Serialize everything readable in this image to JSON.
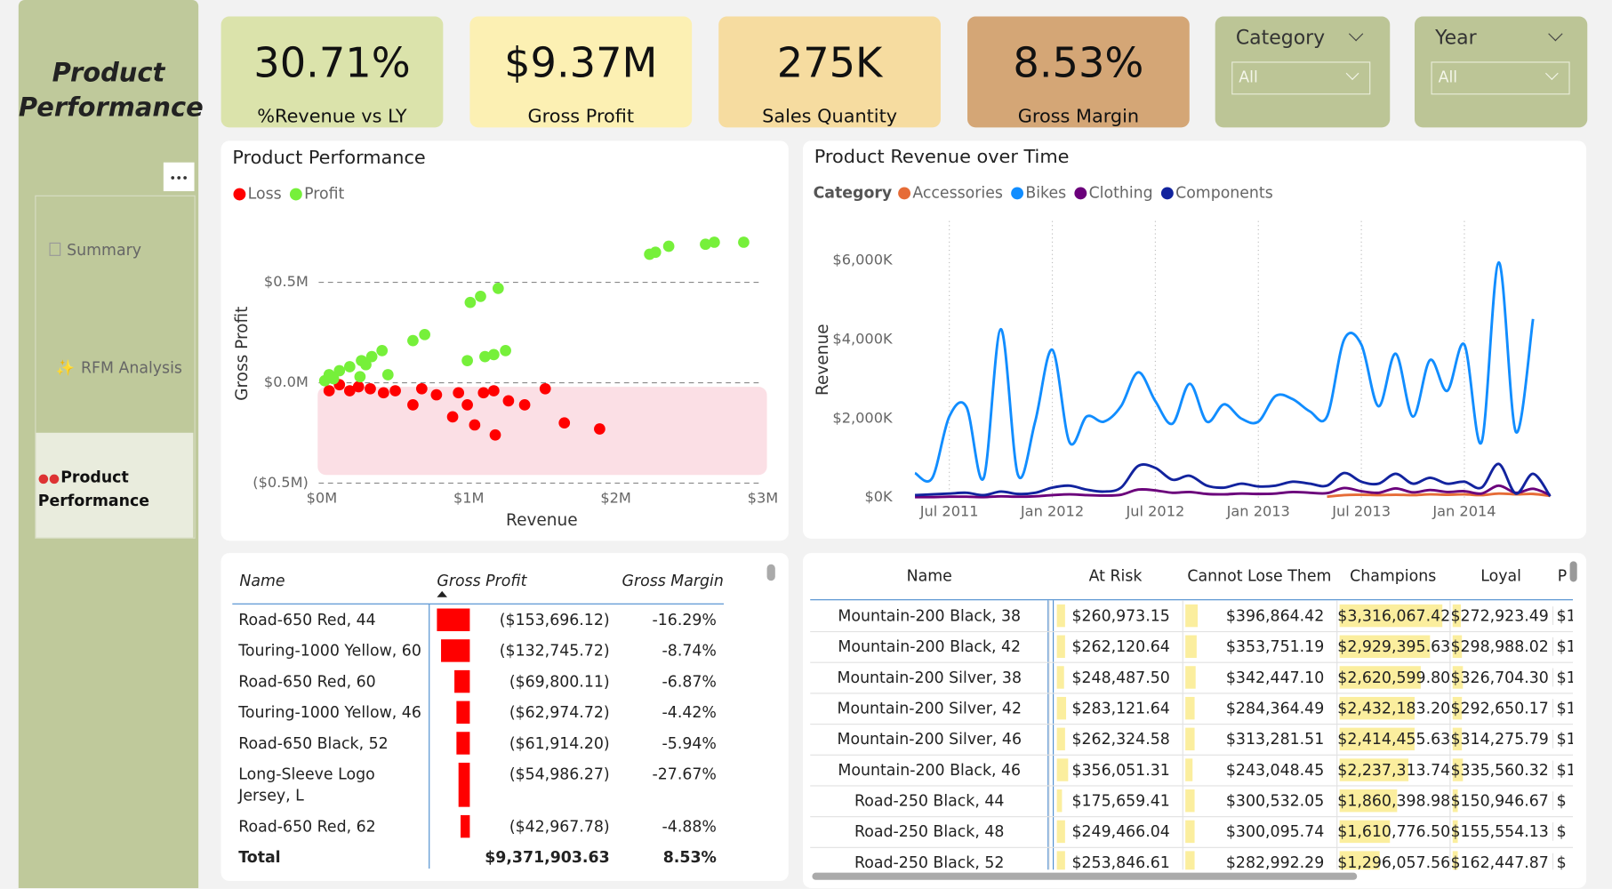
{
  "sidebar": {
    "title": "Product Performance",
    "nav": [
      "Summary",
      "RFM Analysis",
      "Product Performance"
    ]
  },
  "kpis": [
    {
      "value": "30.71%",
      "label": "%Revenue vs LY",
      "color": "#dbe3ab"
    },
    {
      "value": "$9.37M",
      "label": "Gross Profit",
      "color": "#fcf0b3"
    },
    {
      "value": "275K",
      "label": "Sales Quantity",
      "color": "#f6dca0"
    },
    {
      "value": "8.53%",
      "label": "Gross Margin",
      "color": "#d4a676"
    }
  ],
  "slicers": [
    {
      "title": "Category",
      "value": "All"
    },
    {
      "title": "Year",
      "value": "All"
    }
  ],
  "chart_data": [
    {
      "type": "scatter",
      "title": "Product Performance",
      "x_label": "Revenue",
      "y_label": "Gross Profit",
      "xlim": [
        0,
        3
      ],
      "xticks": [
        {
          "value": 0,
          "label": "$0M"
        },
        {
          "value": 1,
          "label": "$1M"
        },
        {
          "value": 2,
          "label": "$2M"
        },
        {
          "value": 3,
          "label": "$3M"
        }
      ],
      "ylim": [
        -0.5,
        0.78
      ],
      "yticks": [
        {
          "value": -0.5,
          "label": "($0.5M)"
        },
        {
          "value": 0,
          "label": "$0.0M"
        },
        {
          "value": 0.5,
          "label": "$0.5M"
        }
      ],
      "grid": true,
      "series": [
        {
          "name": "Loss",
          "color": "#ff0000",
          "x": [
            1.89,
            1.65,
            1.18,
            1.04,
            0.89,
            0.62,
            1.38,
            1.27,
            1.52,
            1.17,
            0.93,
            0.78,
            0.68,
            0.5,
            0.33,
            0.19,
            0.05,
            0.99,
            1.1,
            0.25,
            0.42,
            0.12
          ],
          "values": [
            -0.23,
            -0.2,
            -0.26,
            -0.21,
            -0.17,
            -0.11,
            -0.11,
            -0.09,
            -0.03,
            -0.04,
            -0.05,
            -0.06,
            -0.03,
            -0.04,
            -0.03,
            -0.04,
            -0.04,
            -0.11,
            -0.05,
            -0.02,
            -0.05,
            -0.01
          ]
        },
        {
          "name": "Profit",
          "color": "#76f03a",
          "x": [
            2.87,
            2.67,
            2.61,
            2.36,
            2.27,
            2.23,
            1.2,
            1.08,
            1.01,
            0.7,
            0.62,
            0.41,
            0.34,
            0.27,
            0.19,
            0.12,
            0.05,
            1.25,
            1.17,
            1.11,
            0.99,
            0.45,
            0.26,
            0.02,
            0.3,
            0.08
          ],
          "values": [
            0.7,
            0.7,
            0.69,
            0.68,
            0.65,
            0.64,
            0.47,
            0.43,
            0.4,
            0.24,
            0.21,
            0.16,
            0.13,
            0.11,
            0.08,
            0.06,
            0.04,
            0.16,
            0.14,
            0.13,
            0.11,
            0.04,
            0.03,
            0.01,
            0.09,
            0.02
          ]
        }
      ]
    },
    {
      "type": "line",
      "title": "Product Revenue over Time",
      "legend_title": "Category",
      "y_label": "Revenue",
      "categories": [
        null,
        null,
        "Jul 2011",
        null,
        null,
        null,
        null,
        null,
        "Jan 2012",
        null,
        null,
        null,
        null,
        null,
        "Jul 2012",
        null,
        null,
        null,
        null,
        null,
        "Jan 2013",
        null,
        null,
        null,
        null,
        null,
        "Jul 2013",
        null,
        null,
        null,
        null,
        null,
        "Jan 2014",
        null,
        null,
        null,
        null,
        null
      ],
      "ylim": [
        0,
        7000
      ],
      "yticks": [
        {
          "value": 0,
          "label": "$0K"
        },
        {
          "value": 2000,
          "label": "$2,000K"
        },
        {
          "value": 4000,
          "label": "$4,000K"
        },
        {
          "value": 6000,
          "label": "$6,000K"
        }
      ],
      "series": [
        {
          "name": "Accessories",
          "color": "#e66c37",
          "values": [
            null,
            null,
            null,
            null,
            null,
            null,
            null,
            null,
            null,
            null,
            null,
            null,
            null,
            null,
            null,
            null,
            null,
            null,
            null,
            null,
            null,
            null,
            null,
            null,
            20,
            60,
            70,
            60,
            70,
            60,
            80,
            70,
            80,
            60,
            100,
            80,
            90,
            40
          ]
        },
        {
          "name": "Bikes",
          "color": "#118dff",
          "values": [
            620,
            490,
            2050,
            2290,
            490,
            4260,
            570,
            1920,
            3740,
            1400,
            2050,
            1920,
            2310,
            3170,
            2440,
            1870,
            2880,
            1920,
            2360,
            2000,
            1920,
            2570,
            2490,
            2180,
            2050,
            4000,
            3870,
            2310,
            3640,
            2050,
            3480,
            2700,
            3870,
            1400,
            5950,
            1660,
            4520,
            null
          ]
        },
        {
          "name": "Clothing",
          "color": "#6b007b",
          "values": [
            10,
            10,
            20,
            20,
            10,
            30,
            20,
            30,
            60,
            80,
            60,
            50,
            70,
            200,
            180,
            120,
            140,
            90,
            80,
            100,
            90,
            100,
            140,
            120,
            110,
            240,
            160,
            120,
            230,
            130,
            190,
            140,
            160,
            100,
            300,
            120,
            220,
            60
          ]
        },
        {
          "name": "Components",
          "color": "#12239e",
          "values": [
            60,
            80,
            100,
            120,
            60,
            150,
            90,
            120,
            250,
            300,
            200,
            150,
            250,
            800,
            750,
            450,
            550,
            300,
            250,
            350,
            280,
            300,
            400,
            350,
            300,
            620,
            400,
            350,
            600,
            350,
            500,
            350,
            400,
            250,
            850,
            100,
            600,
            30
          ]
        }
      ]
    }
  ],
  "profit_table": {
    "columns": [
      "Name",
      "Gross Profit",
      "Gross Margin"
    ],
    "rows": [
      [
        "Road-650 Red, 44",
        {
          "value": -153696.12,
          "label": "($153,696.12)"
        },
        "-16.29%"
      ],
      [
        "Touring-1000 Yellow, 60",
        {
          "value": -132745.72,
          "label": "($132,745.72)"
        },
        "-8.74%"
      ],
      [
        "Road-650 Red, 60",
        {
          "value": -69800.11,
          "label": "($69,800.11)"
        },
        "-6.87%"
      ],
      [
        "Touring-1000 Yellow, 46",
        {
          "value": -62974.72,
          "label": "($62,974.72)"
        },
        "-4.42%"
      ],
      [
        "Road-650 Black, 52",
        {
          "value": -61914.2,
          "label": "($61,914.20)"
        },
        "-5.94%"
      ],
      [
        "Long-Sleeve Logo Jersey, L",
        {
          "value": -54986.27,
          "label": "($54,986.27)"
        },
        "-27.67%"
      ],
      [
        "Road-650 Red, 62",
        {
          "value": -42967.78,
          "label": "($42,967.78)"
        },
        "-4.88%"
      ]
    ],
    "total": [
      "Total",
      "$9,371,903.63",
      "8.53%"
    ]
  },
  "rfm_table": {
    "columns": [
      "Name",
      "At Risk",
      "Cannot Lose Them",
      "Champions",
      "Loyal",
      "P"
    ],
    "rows": [
      [
        "Mountain-200 Black, 38",
        {
          "value": 260973.15,
          "label": "$260,973.15"
        },
        {
          "value": 396864.42,
          "label": "$396,864.42"
        },
        {
          "value": 3316067.42,
          "label": "$3,316,067.42"
        },
        {
          "value": 272923.49,
          "label": "$272,923.49"
        },
        "$1"
      ],
      [
        "Mountain-200 Black, 42",
        {
          "value": 262120.64,
          "label": "$262,120.64"
        },
        {
          "value": 353751.19,
          "label": "$353,751.19"
        },
        {
          "value": 2929395.63,
          "label": "$2,929,395.63"
        },
        {
          "value": 298988.02,
          "label": "$298,988.02"
        },
        "$1"
      ],
      [
        "Mountain-200 Silver, 38",
        {
          "value": 248487.5,
          "label": "$248,487.50"
        },
        {
          "value": 342447.1,
          "label": "$342,447.10"
        },
        {
          "value": 2620599.8,
          "label": "$2,620,599.80"
        },
        {
          "value": 326704.3,
          "label": "$326,704.30"
        },
        "$1"
      ],
      [
        "Mountain-200 Silver, 42",
        {
          "value": 283121.64,
          "label": "$283,121.64"
        },
        {
          "value": 284364.49,
          "label": "$284,364.49"
        },
        {
          "value": 2432183.2,
          "label": "$2,432,183.20"
        },
        {
          "value": 292650.17,
          "label": "$292,650.17"
        },
        "$1"
      ],
      [
        "Mountain-200 Silver, 46",
        {
          "value": 262324.58,
          "label": "$262,324.58"
        },
        {
          "value": 313281.51,
          "label": "$313,281.51"
        },
        {
          "value": 2414455.63,
          "label": "$2,414,455.63"
        },
        {
          "value": 314275.79,
          "label": "$314,275.79"
        },
        "$1"
      ],
      [
        "Mountain-200 Black, 46",
        {
          "value": 356051.31,
          "label": "$356,051.31"
        },
        {
          "value": 243048.45,
          "label": "$243,048.45"
        },
        {
          "value": 2237313.74,
          "label": "$2,237,313.74"
        },
        {
          "value": 335560.32,
          "label": "$335,560.32"
        },
        "$1"
      ],
      [
        "Road-250 Black, 44",
        {
          "value": 175659.41,
          "label": "$175,659.41"
        },
        {
          "value": 300532.05,
          "label": "$300,532.05"
        },
        {
          "value": 1860398.98,
          "label": "$1,860,398.98"
        },
        {
          "value": 150946.67,
          "label": "$150,946.67"
        },
        "$"
      ],
      [
        "Road-250 Black, 48",
        {
          "value": 249466.04,
          "label": "$249,466.04"
        },
        {
          "value": 300095.74,
          "label": "$300,095.74"
        },
        {
          "value": 1610776.5,
          "label": "$1,610,776.50"
        },
        {
          "value": 155554.13,
          "label": "$155,554.13"
        },
        "$"
      ],
      [
        "Road-250 Black, 52",
        {
          "value": 253846.61,
          "label": "$253,846.61"
        },
        {
          "value": 282992.29,
          "label": "$282,992.29"
        },
        {
          "value": 1296057.56,
          "label": "$1,296,057.56"
        },
        {
          "value": 162447.87,
          "label": "$162,447.87"
        },
        "$"
      ]
    ]
  }
}
